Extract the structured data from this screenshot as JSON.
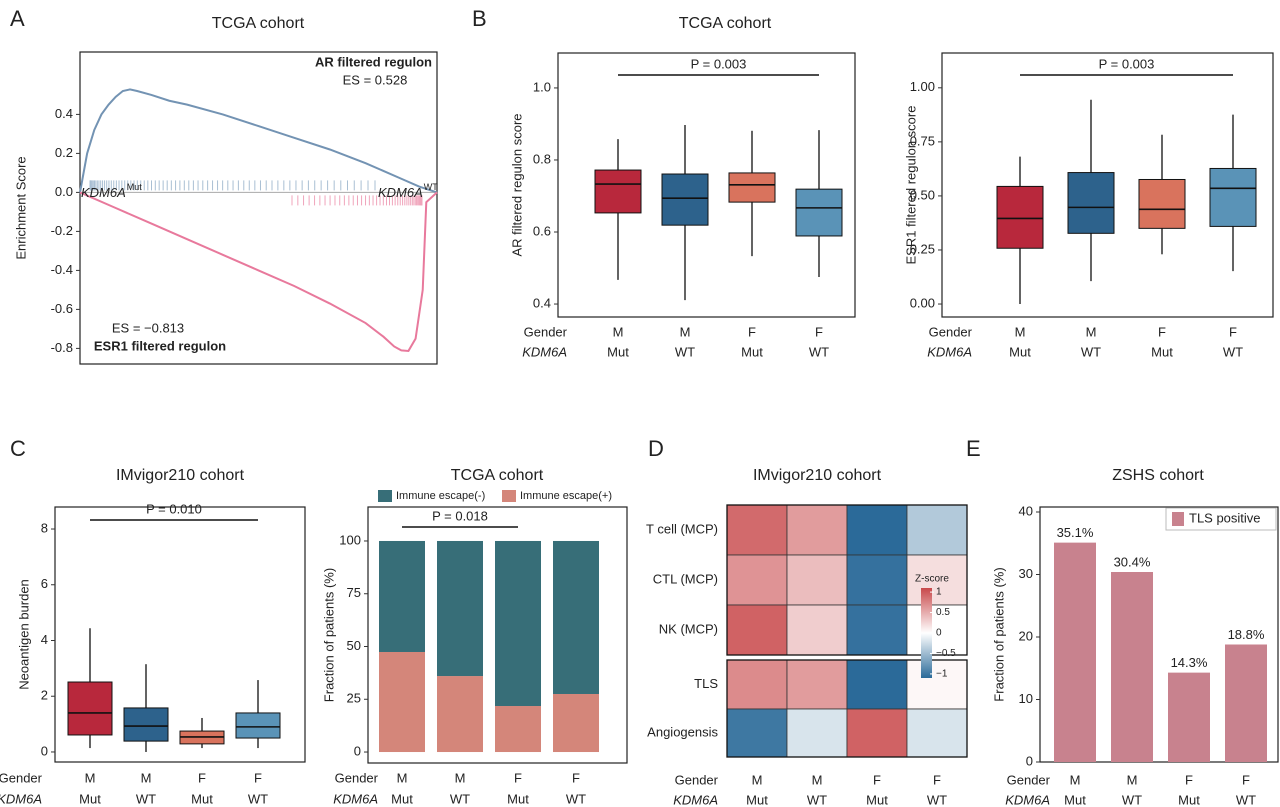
{
  "chart_data": [
    {
      "type": "gsea",
      "panel": "A",
      "title": "TCGA cohort",
      "ylabel": "Enrichment Score",
      "series": [
        {
          "name": "AR filtered regulon",
          "color": "#7393b3",
          "es_label": "ES = 0.528",
          "x": [
            0,
            2,
            4,
            6,
            8,
            10,
            12,
            14,
            16,
            20,
            25,
            30,
            40,
            50,
            60,
            70,
            80,
            90,
            95,
            100
          ],
          "values": [
            0,
            0.2,
            0.32,
            0.4,
            0.45,
            0.49,
            0.52,
            0.528,
            0.52,
            0.5,
            0.47,
            0.45,
            0.4,
            0.34,
            0.28,
            0.22,
            0.15,
            0.07,
            0.03,
            0
          ]
        },
        {
          "name": "ESR1 filtered regulon",
          "color": "#e8799c",
          "es_label": "ES = −0.813",
          "x": [
            0,
            10,
            20,
            30,
            40,
            50,
            60,
            70,
            80,
            85,
            88,
            90,
            92,
            94,
            96,
            97,
            100
          ],
          "values": [
            0,
            -0.08,
            -0.16,
            -0.24,
            -0.32,
            -0.4,
            -0.48,
            -0.57,
            -0.67,
            -0.74,
            -0.79,
            -0.81,
            -0.813,
            -0.75,
            -0.5,
            -0.05,
            0
          ]
        }
      ],
      "left_label": {
        "text": "KDM6A",
        "sup": "Mut"
      },
      "right_label": {
        "text": "KDM6A",
        "sup": "WT"
      },
      "xlim": [
        0,
        100
      ],
      "ylim": [
        -0.88,
        0.72
      ],
      "yticks": [
        -0.8,
        -0.6,
        -0.4,
        -0.2,
        {
          "value": 0,
          "label": "0.0"
        },
        0.2,
        0.4
      ]
    },
    {
      "type": "box",
      "panel": "B",
      "title": "TCGA cohort",
      "ylabel": "AR filtered regulon score",
      "significance": "P = 0.003",
      "row_labels": [
        "Gender",
        "KDM6A"
      ],
      "gender": [
        "M",
        "M",
        "F",
        "F"
      ],
      "kdm6a": [
        "Mut",
        "WT",
        "Mut",
        "WT"
      ],
      "colors": [
        "#b8283c",
        "#2d628c",
        "#d9735d",
        "#5a93b7"
      ],
      "low": [
        0.467,
        0.411,
        0.533,
        0.475
      ],
      "q1": [
        0.653,
        0.619,
        0.683,
        0.589
      ],
      "median": [
        0.733,
        0.694,
        0.731,
        0.667
      ],
      "q3": [
        0.772,
        0.761,
        0.764,
        0.719
      ],
      "high": [
        0.858,
        0.897,
        0.881,
        0.883
      ],
      "ylim": [
        0.364,
        1.097
      ],
      "yticks": [
        0.4,
        0.6,
        0.8,
        {
          "value": 1,
          "label": "1.0"
        }
      ]
    },
    {
      "type": "box",
      "ylabel": "ESR1  filtered regulon score",
      "significance": "P = 0.003",
      "row_labels": [
        "Gender",
        "KDM6A"
      ],
      "gender": [
        "M",
        "M",
        "F",
        "F"
      ],
      "kdm6a": [
        "Mut",
        "WT",
        "Mut",
        "WT"
      ],
      "colors": [
        "#b8283c",
        "#2d628c",
        "#d9735d",
        "#5a93b7"
      ],
      "low": [
        0,
        0.106,
        0.23,
        0.152
      ],
      "q1": [
        0.258,
        0.327,
        0.35,
        0.359
      ],
      "median": [
        0.396,
        0.447,
        0.438,
        0.535
      ],
      "q3": [
        0.544,
        0.608,
        0.576,
        0.627
      ],
      "high": [
        0.682,
        0.945,
        0.783,
        0.876
      ],
      "ylim": [
        -0.06,
        1.161
      ],
      "yticks": [
        {
          "value": 0,
          "label": "0.00"
        },
        {
          "value": 0.25,
          "label": "0.25"
        },
        {
          "value": 0.5,
          "label": "0.50"
        },
        {
          "value": 0.75,
          "label": "0.75"
        },
        {
          "value": 1,
          "label": "1.00"
        }
      ]
    },
    {
      "type": "box",
      "panel": "C",
      "title": "IMvigor210 cohort",
      "ylabel": "Neoantigen burden",
      "significance": "P = 0.010",
      "row_labels": [
        "Gender",
        "KDM6A"
      ],
      "gender": [
        "M",
        "M",
        "F",
        "F"
      ],
      "kdm6a": [
        "Mut",
        "WT",
        "Mut",
        "WT"
      ],
      "colors": [
        "#b8283c",
        "#2d628c",
        "#d9735d",
        "#5a93b7"
      ],
      "low": [
        0.14,
        0,
        0.14,
        0.14
      ],
      "q1": [
        0.61,
        0.39,
        0.29,
        0.5
      ],
      "median": [
        1.4,
        0.93,
        0.54,
        0.9
      ],
      "q3": [
        2.51,
        1.58,
        0.75,
        1.4
      ],
      "high": [
        4.44,
        3.15,
        1.22,
        2.58
      ],
      "ylim": [
        -0.36,
        8.79
      ],
      "yticks": [
        0,
        2,
        4,
        6,
        8
      ]
    },
    {
      "type": "stacked_bar",
      "title": "TCGA cohort",
      "ylabel": "Fraction of patients (%)",
      "significance": "P = 0.018",
      "row_labels": [
        "Gender",
        "KDM6A"
      ],
      "gender": [
        "M",
        "M",
        "F",
        "F"
      ],
      "kdm6a": [
        "Mut",
        "WT",
        "Mut",
        "WT"
      ],
      "colors": [
        "#b8283c",
        "#2d628c",
        "#d9735d",
        "#5a93b7"
      ],
      "series": [
        {
          "name": "Immune escape(-)",
          "color": "#376e78",
          "values": [
            52.6,
            64,
            78.2,
            72.5
          ]
        },
        {
          "name": "Immune escape(+)",
          "color": "#d4867a",
          "values": [
            47.4,
            36,
            21.8,
            27.5
          ]
        }
      ],
      "legend": "top",
      "ylim": [
        -5.2,
        116.1
      ],
      "yticks": [
        0,
        25,
        50,
        75,
        100
      ]
    },
    {
      "type": "heatmap",
      "panel": "D",
      "title": "IMvigor210 cohort",
      "rows": [
        "T cell (MCP)",
        "CTL (MCP)",
        "NK (MCP)",
        "TLS",
        "Angiogensis"
      ],
      "values": [
        [
          0.9,
          0.6,
          -1.1,
          -0.4
        ],
        [
          0.65,
          0.4,
          -1.05,
          0.2
        ],
        [
          0.95,
          0.3,
          -1.05,
          0
        ],
        [
          0.7,
          0.6,
          -1.1,
          0.05
        ],
        [
          -1,
          -0.2,
          0.95,
          -0.2
        ]
      ],
      "row_labels": [
        "Gender",
        "KDM6A"
      ],
      "gender": [
        "M",
        "M",
        "F",
        "F"
      ],
      "kdm6a": [
        "Mut",
        "WT",
        "Mut",
        "WT"
      ],
      "colors": [
        "#b8283c",
        "#2d628c",
        "#d9735d",
        "#5a93b7"
      ],
      "colorbar_title": "Z-score",
      "clim": [
        -1.1,
        1.1
      ],
      "cticks": [
        1,
        0.5,
        0,
        {
          "value": -0.5,
          "label": "−0.5"
        },
        {
          "value": -1,
          "label": "−1"
        }
      ],
      "cmap": [
        "#2b6a99",
        "#ffffff",
        "#c8494b"
      ]
    },
    {
      "type": "bar",
      "panel": "E",
      "title": "ZSHS cohort",
      "ylabel": "Fraction of patients (%)",
      "row_labels": [
        "Gender",
        "KDM6A"
      ],
      "gender": [
        "M",
        "M",
        "F",
        "F"
      ],
      "kdm6a": [
        "Mut",
        "WT",
        "Mut",
        "WT"
      ],
      "colors": [
        "#b8283c",
        "#2d628c",
        "#d9735d",
        "#5a93b7"
      ],
      "series": [
        {
          "name": "TLS positive",
          "color": "#c8828e",
          "values": [
            35.1,
            30.4,
            14.3,
            18.8
          ],
          "value_labels": [
            "35.1%",
            "30.4%",
            "14.3%",
            "18.8%"
          ]
        }
      ],
      "legend": "top-right",
      "ylim": [
        0,
        40.8
      ],
      "yticks": [
        0,
        10,
        20,
        30,
        40
      ]
    }
  ]
}
